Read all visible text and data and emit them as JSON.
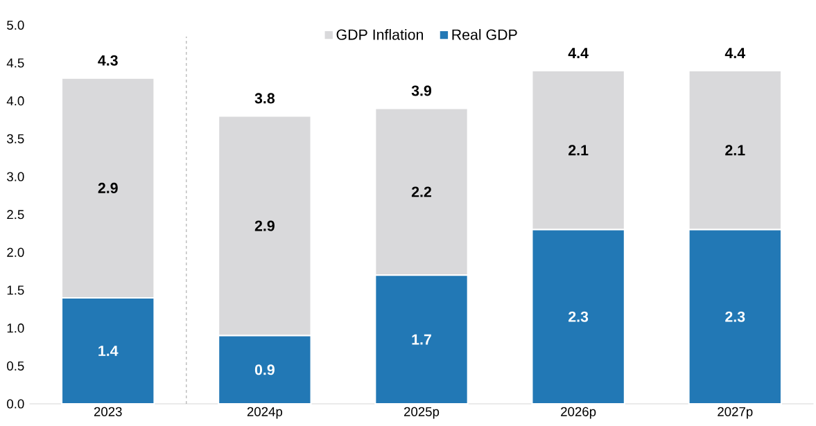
{
  "chart_data": {
    "type": "bar",
    "stacked": true,
    "categories": [
      "2023",
      "2024p",
      "2025p",
      "2026p",
      "2027p"
    ],
    "series": [
      {
        "name": "Real GDP",
        "color": "#2278b5",
        "values": [
          1.4,
          0.9,
          1.7,
          2.3,
          2.3
        ]
      },
      {
        "name": "GDP Inflation",
        "color": "#d9d9db",
        "values": [
          2.9,
          2.9,
          2.2,
          2.1,
          2.1
        ]
      }
    ],
    "totals": [
      "4.3",
      "3.8",
      "3.9",
      "4.4",
      "4.4"
    ],
    "data_labels": true,
    "ylim": [
      0,
      5
    ],
    "yticks": [
      {
        "value": 0,
        "label": "0.0"
      },
      {
        "value": 0.5,
        "label": "0.5"
      },
      {
        "value": 1,
        "label": "1.0"
      },
      {
        "value": 1.5,
        "label": "1.5"
      },
      {
        "value": 2,
        "label": "2.0"
      },
      {
        "value": 2.5,
        "label": "2.5"
      },
      {
        "value": 3,
        "label": "3.0"
      },
      {
        "value": 3.5,
        "label": "3.5"
      },
      {
        "value": 4,
        "label": "4.0"
      },
      {
        "value": 4.5,
        "label": "4.5"
      },
      {
        "value": 5,
        "label": "5.0"
      }
    ],
    "legend": "top",
    "grid": false
  }
}
